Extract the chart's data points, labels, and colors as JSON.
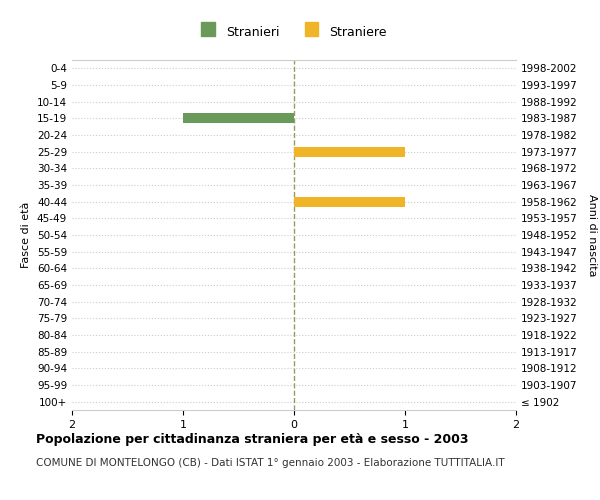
{
  "age_groups": [
    "100+",
    "95-99",
    "90-94",
    "85-89",
    "80-84",
    "75-79",
    "70-74",
    "65-69",
    "60-64",
    "55-59",
    "50-54",
    "45-49",
    "40-44",
    "35-39",
    "30-34",
    "25-29",
    "20-24",
    "15-19",
    "10-14",
    "5-9",
    "0-4"
  ],
  "birth_years": [
    "≤ 1902",
    "1903-1907",
    "1908-1912",
    "1913-1917",
    "1918-1922",
    "1923-1927",
    "1928-1932",
    "1933-1937",
    "1938-1942",
    "1943-1947",
    "1948-1952",
    "1953-1957",
    "1958-1962",
    "1963-1967",
    "1968-1972",
    "1973-1977",
    "1978-1982",
    "1983-1987",
    "1988-1992",
    "1993-1997",
    "1998-2002"
  ],
  "males": [
    0,
    0,
    0,
    0,
    0,
    0,
    0,
    0,
    0,
    0,
    0,
    0,
    0,
    0,
    0,
    0,
    0,
    1,
    0,
    0,
    0
  ],
  "females": [
    0,
    0,
    0,
    0,
    0,
    0,
    0,
    0,
    0,
    0,
    0,
    0,
    1,
    0,
    0,
    1,
    0,
    0,
    0,
    0,
    0
  ],
  "xlim": 2,
  "male_color": "#6a9a5a",
  "female_color": "#f0b429",
  "grid_color": "#cccccc",
  "center_line_color": "#999966",
  "title": "Popolazione per cittadinanza straniera per età e sesso - 2003",
  "subtitle": "COMUNE DI MONTELONGO (CB) - Dati ISTAT 1° gennaio 2003 - Elaborazione TUTTITALIA.IT",
  "ylabel_left": "Fasce di età",
  "ylabel_right": "Anni di nascita",
  "legend_male": "Stranieri",
  "legend_female": "Straniere",
  "bg_color": "#ffffff",
  "plot_bg_color": "#ffffff"
}
